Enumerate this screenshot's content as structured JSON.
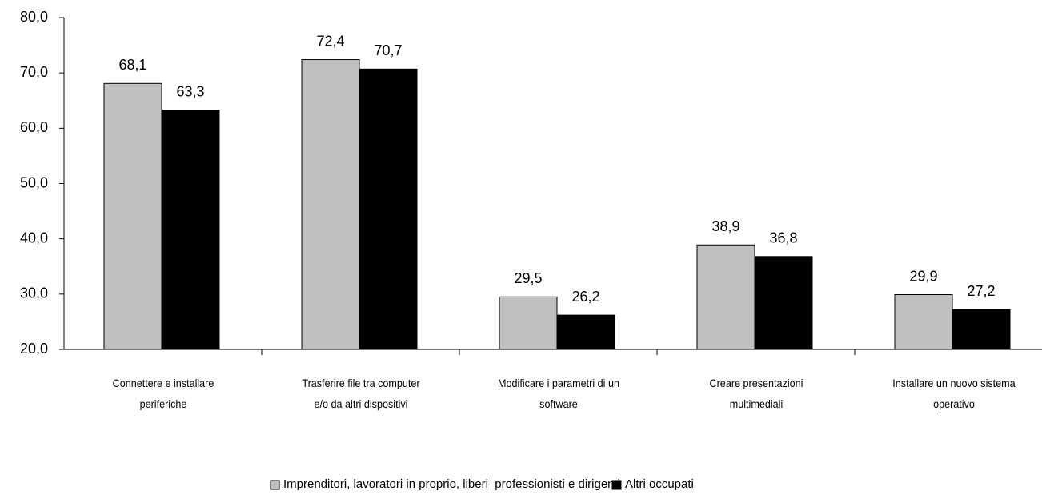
{
  "chart_data": {
    "type": "bar",
    "categories": [
      "Connettere e installare\nperiferiche",
      "Trasferire file tra computer\ne/o da altri dispositivi",
      "Modificare  i parametri di un\nsoftware",
      "Creare presentazioni\nmultimediali",
      "Installare un nuovo sistema\noperativo"
    ],
    "series": [
      {
        "name": "Imprenditori, lavoratori in proprio, liberi  professionisti e dirigenti",
        "color": "#c0c0c0",
        "values": [
          68.1,
          72.4,
          29.5,
          38.9,
          29.9
        ],
        "value_labels": [
          "68,1",
          "72,4",
          "29,5",
          "38,9",
          "29,9"
        ]
      },
      {
        "name": "Altri occupati",
        "color": "#000000",
        "values": [
          63.3,
          70.7,
          26.2,
          36.8,
          27.2
        ],
        "value_labels": [
          "63,3",
          "70,7",
          "26,2",
          "36,8",
          "27,2"
        ]
      }
    ],
    "ylim": [
      20,
      80
    ],
    "yticks": [
      {
        "value": 20,
        "label": "20,0"
      },
      {
        "value": 30,
        "label": "30,0"
      },
      {
        "value": 40,
        "label": "40,0"
      },
      {
        "value": 50,
        "label": "50,0"
      },
      {
        "value": 60,
        "label": "60,0"
      },
      {
        "value": 70,
        "label": "70,0"
      },
      {
        "value": 80,
        "label": "80,0"
      }
    ],
    "legend": "bottom"
  }
}
